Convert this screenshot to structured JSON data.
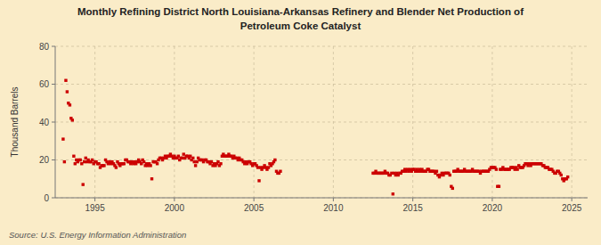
{
  "chart_data": {
    "type": "scatter",
    "title": "Monthly Refining District North Louisiana-Arkansas Refinery and Blender Net Production of\nPetroleum Coke Catalyst",
    "ylabel": "Thousand Barrels",
    "source": "Source: U.S. Energy Information Administration",
    "color": "#cc0000",
    "marker": "square",
    "grid": true,
    "xlim": [
      1992.5,
      2026
    ],
    "ylim": [
      0,
      80
    ],
    "xticks": [
      1995,
      2000,
      2005,
      2010,
      2015,
      2020,
      2025
    ],
    "yticks": [
      0,
      20,
      40,
      60,
      80
    ],
    "x": [
      1993.0,
      1993.08,
      1993.17,
      1993.25,
      1993.33,
      1993.42,
      1993.5,
      1993.58,
      1993.67,
      1993.75,
      1993.83,
      1993.92,
      1994.0,
      1994.08,
      1994.17,
      1994.25,
      1994.33,
      1994.42,
      1994.5,
      1994.58,
      1994.67,
      1994.75,
      1994.83,
      1994.92,
      1995.0,
      1995.08,
      1995.17,
      1995.25,
      1995.33,
      1995.42,
      1995.5,
      1995.58,
      1995.67,
      1995.75,
      1995.83,
      1995.92,
      1996.0,
      1996.08,
      1996.17,
      1996.25,
      1996.33,
      1996.42,
      1996.5,
      1996.58,
      1996.67,
      1996.75,
      1996.83,
      1996.92,
      1997.0,
      1997.08,
      1997.17,
      1997.25,
      1997.33,
      1997.42,
      1997.5,
      1997.58,
      1997.67,
      1997.75,
      1997.83,
      1997.92,
      1998.0,
      1998.08,
      1998.17,
      1998.25,
      1998.33,
      1998.42,
      1998.5,
      1998.58,
      1998.67,
      1998.75,
      1998.83,
      1998.92,
      1999.0,
      1999.08,
      1999.17,
      1999.25,
      1999.33,
      1999.42,
      1999.5,
      1999.58,
      1999.67,
      1999.75,
      1999.83,
      1999.92,
      2000.0,
      2000.08,
      2000.17,
      2000.25,
      2000.33,
      2000.42,
      2000.5,
      2000.58,
      2000.67,
      2000.75,
      2000.83,
      2000.92,
      2001.0,
      2001.08,
      2001.17,
      2001.25,
      2001.33,
      2001.42,
      2001.5,
      2001.58,
      2001.67,
      2001.75,
      2001.83,
      2001.92,
      2002.0,
      2002.08,
      2002.17,
      2002.25,
      2002.33,
      2002.42,
      2002.5,
      2002.58,
      2002.67,
      2002.75,
      2002.83,
      2002.92,
      2003.0,
      2003.08,
      2003.17,
      2003.25,
      2003.33,
      2003.42,
      2003.5,
      2003.58,
      2003.67,
      2003.75,
      2003.83,
      2003.92,
      2004.0,
      2004.08,
      2004.17,
      2004.25,
      2004.33,
      2004.42,
      2004.5,
      2004.58,
      2004.67,
      2004.75,
      2004.83,
      2004.92,
      2005.0,
      2005.08,
      2005.17,
      2005.25,
      2005.33,
      2005.42,
      2005.5,
      2005.58,
      2005.67,
      2005.75,
      2005.83,
      2005.92,
      2006.0,
      2006.08,
      2006.17,
      2006.25,
      2006.33,
      2006.42,
      2006.5,
      2006.58,
      2006.67,
      2012.5,
      2012.58,
      2012.67,
      2012.75,
      2012.83,
      2012.92,
      2013.0,
      2013.08,
      2013.17,
      2013.25,
      2013.33,
      2013.42,
      2013.5,
      2013.58,
      2013.67,
      2013.75,
      2013.83,
      2013.92,
      2014.0,
      2014.08,
      2014.17,
      2014.25,
      2014.33,
      2014.42,
      2014.5,
      2014.58,
      2014.67,
      2014.75,
      2014.83,
      2014.92,
      2015.0,
      2015.08,
      2015.17,
      2015.25,
      2015.33,
      2015.42,
      2015.5,
      2015.58,
      2015.67,
      2015.75,
      2015.83,
      2015.92,
      2016.0,
      2016.08,
      2016.17,
      2016.25,
      2016.33,
      2016.42,
      2016.5,
      2016.58,
      2016.67,
      2016.75,
      2016.83,
      2016.92,
      2017.0,
      2017.08,
      2017.17,
      2017.25,
      2017.33,
      2017.42,
      2017.5,
      2017.58,
      2017.67,
      2017.75,
      2017.83,
      2017.92,
      2018.0,
      2018.08,
      2018.17,
      2018.25,
      2018.33,
      2018.42,
      2018.5,
      2018.58,
      2018.67,
      2018.75,
      2018.83,
      2018.92,
      2019.0,
      2019.08,
      2019.17,
      2019.25,
      2019.33,
      2019.42,
      2019.5,
      2019.58,
      2019.67,
      2019.75,
      2019.83,
      2019.92,
      2020.0,
      2020.08,
      2020.17,
      2020.25,
      2020.33,
      2020.42,
      2020.5,
      2020.58,
      2020.67,
      2020.75,
      2020.83,
      2020.92,
      2021.0,
      2021.08,
      2021.17,
      2021.25,
      2021.33,
      2021.42,
      2021.5,
      2021.58,
      2021.67,
      2021.75,
      2021.83,
      2021.92,
      2022.0,
      2022.08,
      2022.17,
      2022.25,
      2022.33,
      2022.42,
      2022.5,
      2022.58,
      2022.67,
      2022.75,
      2022.83,
      2022.92,
      2023.0,
      2023.08,
      2023.17,
      2023.25,
      2023.33,
      2023.42,
      2023.5,
      2023.58,
      2023.67,
      2023.75,
      2023.83,
      2023.92,
      2024.0,
      2024.08,
      2024.17,
      2024.25,
      2024.33,
      2024.42,
      2024.5,
      2024.58,
      2024.67,
      2024.75
    ],
    "values": [
      31,
      19,
      62,
      56,
      50,
      49,
      42,
      41,
      22,
      18,
      20,
      19,
      20,
      20,
      18,
      7,
      19,
      21,
      19,
      20,
      19,
      19,
      20,
      18,
      19,
      19,
      18,
      18,
      16,
      17,
      17,
      17,
      20,
      19,
      18,
      19,
      18,
      19,
      18,
      17,
      16,
      19,
      18,
      17,
      18,
      18,
      18,
      20,
      20,
      19,
      19,
      18,
      19,
      18,
      19,
      18,
      19,
      20,
      19,
      18,
      20,
      19,
      17,
      18,
      17,
      18,
      17,
      10,
      19,
      19,
      19,
      18,
      20,
      21,
      21,
      20,
      21,
      22,
      21,
      22,
      22,
      23,
      22,
      21,
      22,
      21,
      21,
      22,
      20,
      21,
      21,
      23,
      21,
      22,
      22,
      21,
      22,
      20,
      21,
      19,
      17,
      19,
      21,
      20,
      20,
      20,
      19,
      20,
      20,
      19,
      19,
      18,
      19,
      17,
      18,
      17,
      18,
      19,
      17,
      18,
      22,
      23,
      22,
      22,
      22,
      23,
      22,
      22,
      21,
      22,
      21,
      21,
      20,
      21,
      20,
      20,
      19,
      18,
      19,
      18,
      19,
      19,
      18,
      17,
      18,
      18,
      17,
      16,
      9,
      16,
      15,
      16,
      17,
      16,
      15,
      16,
      18,
      17,
      18,
      19,
      20,
      14,
      13,
      13,
      14,
      13,
      13,
      14,
      13,
      13,
      13,
      13,
      13,
      13,
      14,
      13,
      13,
      12,
      12,
      13,
      2,
      13,
      12,
      13,
      12,
      13,
      13,
      14,
      14,
      15,
      14,
      15,
      14,
      15,
      14,
      15,
      15,
      14,
      15,
      14,
      15,
      14,
      15,
      14,
      14,
      14,
      15,
      15,
      14,
      14,
      14,
      14,
      13,
      14,
      12,
      11,
      12,
      13,
      12,
      13,
      13,
      13,
      13,
      12,
      6,
      5,
      14,
      14,
      14,
      15,
      14,
      14,
      14,
      14,
      15,
      14,
      14,
      14,
      14,
      14,
      15,
      14,
      14,
      14,
      14,
      14,
      13,
      14,
      14,
      14,
      14,
      14,
      14,
      15,
      16,
      16,
      16,
      16,
      15,
      6,
      6,
      15,
      15,
      16,
      15,
      15,
      15,
      15,
      15,
      16,
      16,
      16,
      15,
      16,
      15,
      17,
      16,
      16,
      16,
      17,
      18,
      18,
      17,
      18,
      17,
      18,
      18,
      18,
      18,
      18,
      18,
      18,
      18,
      17,
      17,
      16,
      16,
      16,
      15,
      15,
      15,
      14,
      13,
      13,
      14,
      14,
      13,
      12,
      10,
      9,
      10,
      10,
      11
    ]
  }
}
